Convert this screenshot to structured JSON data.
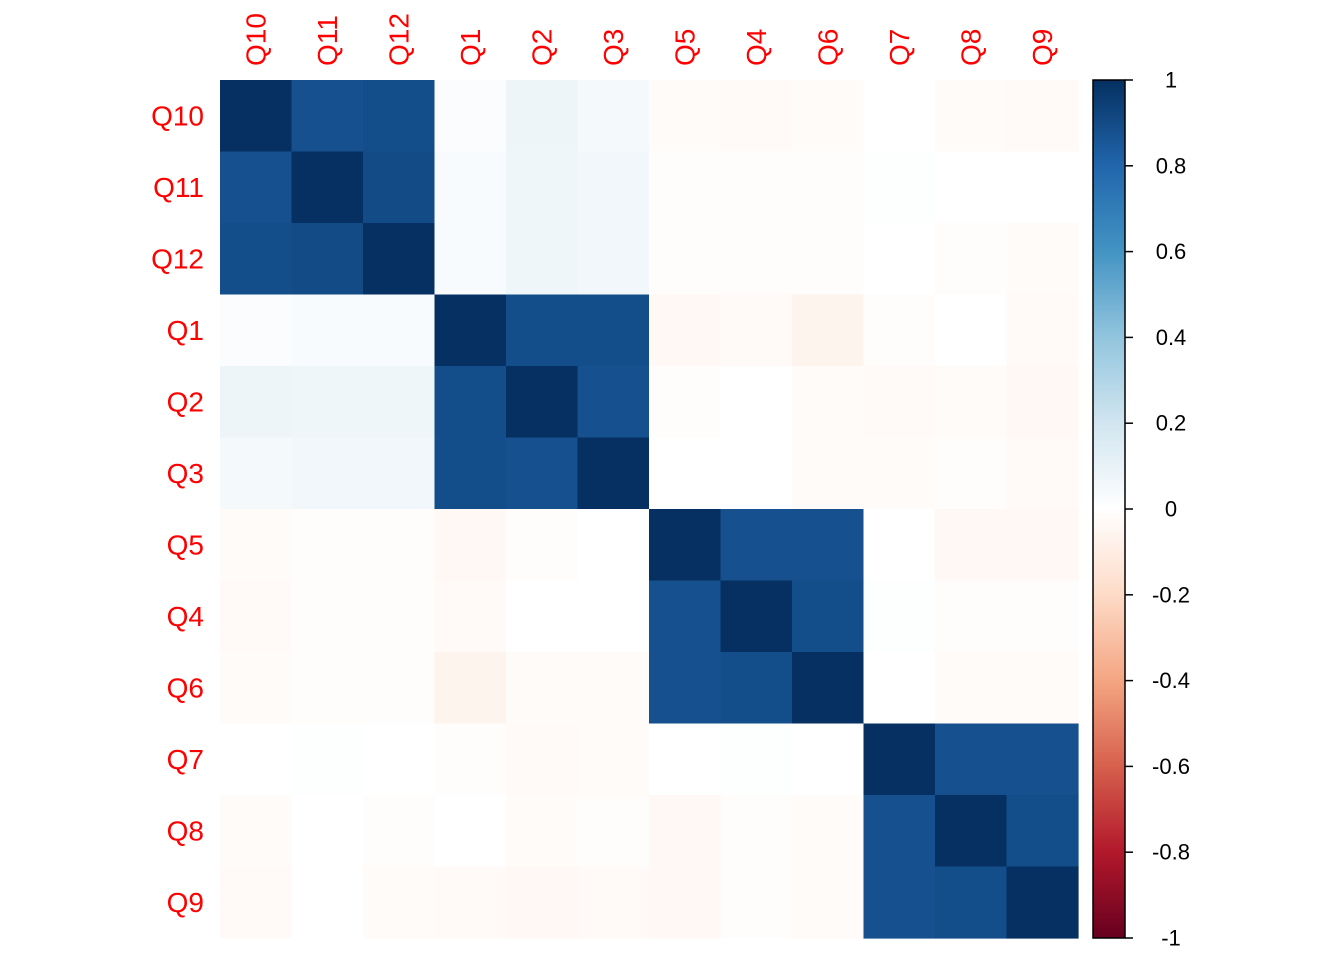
{
  "chart_data": {
    "type": "heatmap",
    "title": "",
    "variables": [
      "Q10",
      "Q11",
      "Q12",
      "Q1",
      "Q2",
      "Q3",
      "Q5",
      "Q4",
      "Q6",
      "Q7",
      "Q8",
      "Q9"
    ],
    "matrix": [
      [
        1.0,
        0.88,
        0.89,
        0.02,
        0.08,
        0.05,
        -0.02,
        -0.03,
        -0.02,
        0.0,
        -0.02,
        -0.03
      ],
      [
        0.88,
        1.0,
        0.9,
        0.03,
        0.07,
        0.06,
        -0.01,
        -0.01,
        -0.01,
        0.01,
        0.0,
        0.0
      ],
      [
        0.89,
        0.9,
        1.0,
        0.03,
        0.07,
        0.06,
        -0.01,
        -0.01,
        -0.01,
        0.0,
        -0.01,
        -0.02
      ],
      [
        0.02,
        0.03,
        0.03,
        1.0,
        0.89,
        0.89,
        -0.04,
        -0.03,
        -0.06,
        -0.01,
        0.0,
        -0.03
      ],
      [
        0.08,
        0.07,
        0.07,
        0.89,
        1.0,
        0.88,
        -0.01,
        0.0,
        -0.02,
        -0.03,
        -0.02,
        -0.04
      ],
      [
        0.05,
        0.06,
        0.06,
        0.89,
        0.88,
        1.0,
        0.0,
        0.0,
        -0.02,
        -0.02,
        -0.01,
        -0.03
      ],
      [
        -0.02,
        -0.01,
        -0.01,
        -0.04,
        -0.01,
        0.0,
        1.0,
        0.88,
        0.88,
        0.0,
        -0.04,
        -0.04
      ],
      [
        -0.03,
        -0.01,
        -0.01,
        -0.03,
        0.0,
        0.0,
        0.88,
        1.0,
        0.89,
        0.01,
        -0.01,
        -0.01
      ],
      [
        -0.02,
        -0.01,
        -0.01,
        -0.06,
        -0.02,
        -0.02,
        0.88,
        0.89,
        1.0,
        0.0,
        -0.02,
        -0.02
      ],
      [
        0.0,
        0.01,
        0.0,
        -0.01,
        -0.03,
        -0.02,
        0.0,
        0.01,
        0.0,
        1.0,
        0.88,
        0.88
      ],
      [
        -0.02,
        0.0,
        -0.01,
        0.0,
        -0.02,
        -0.01,
        -0.04,
        -0.01,
        -0.02,
        0.88,
        1.0,
        0.89
      ],
      [
        -0.03,
        0.0,
        -0.02,
        -0.03,
        -0.04,
        -0.03,
        -0.04,
        -0.01,
        -0.02,
        0.88,
        0.89,
        1.0
      ]
    ],
    "colorbar": {
      "range": [
        -1,
        1
      ],
      "ticks": [
        1,
        0.8,
        0.6,
        0.4,
        0.2,
        0,
        -0.2,
        -0.4,
        -0.6,
        -0.8,
        -1
      ],
      "tick_labels": [
        "1",
        "0.8",
        "0.6",
        "0.4",
        "0.2",
        "0",
        "-0.2",
        "-0.4",
        "-0.6",
        "-0.8",
        "-1"
      ],
      "placement": "right"
    },
    "colors": {
      "label": "#ff0000",
      "palette": [
        "#67001F",
        "#B2182B",
        "#D6604D",
        "#F4A582",
        "#FDDBC7",
        "#FFFFFF",
        "#D1E5F0",
        "#92C5DE",
        "#4393C3",
        "#2166AC",
        "#053061"
      ]
    }
  }
}
